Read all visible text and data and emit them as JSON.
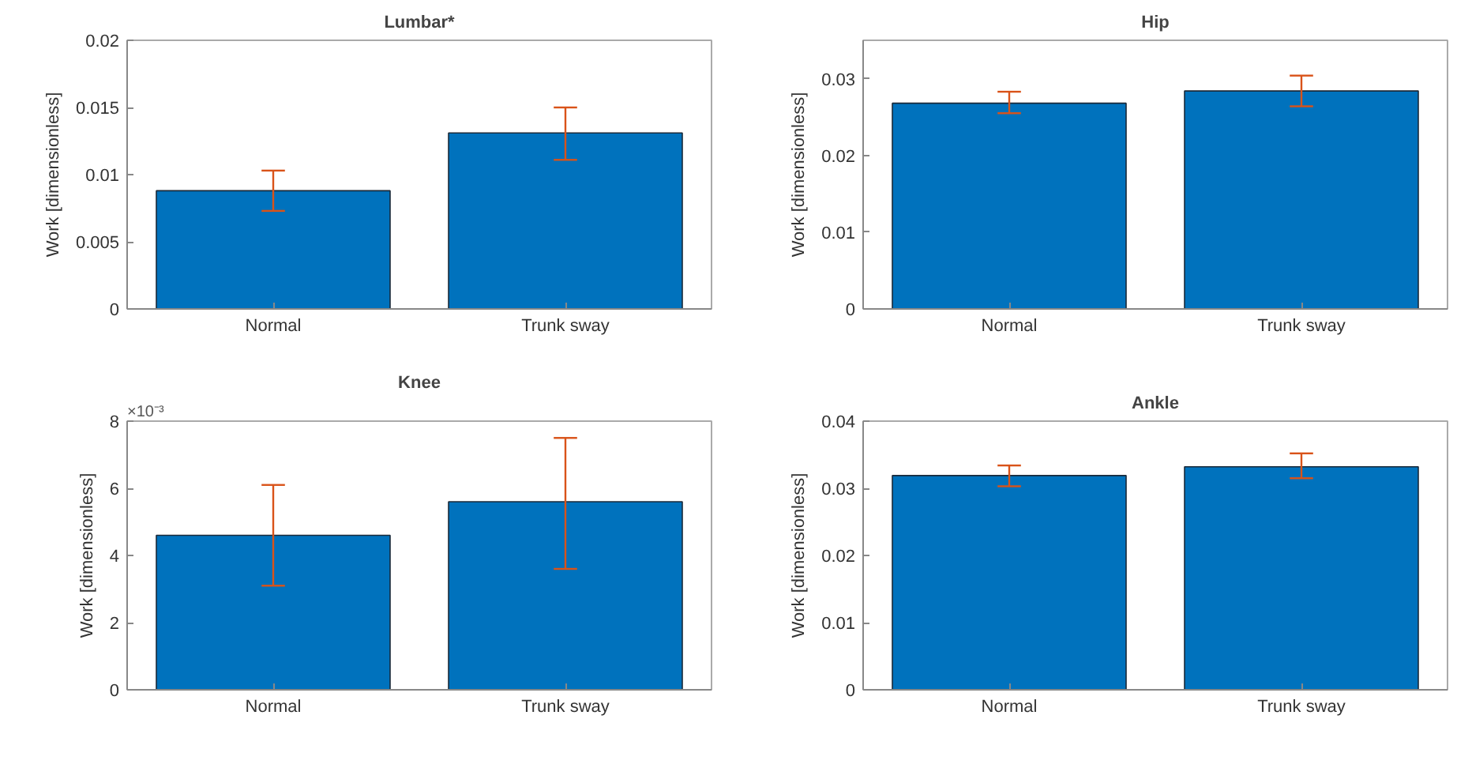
{
  "chart_data": [
    {
      "type": "bar",
      "title": "Lumbar*",
      "ylabel": "Work [dimensionless]",
      "categories": [
        "Normal",
        "Trunk sway"
      ],
      "values": [
        0.0088,
        0.0131
      ],
      "color": "#0072bd",
      "errors": [
        [
          0.0073,
          0.0103
        ],
        [
          0.0111,
          0.015
        ]
      ],
      "ylim": [
        0,
        0.02
      ],
      "yticks": [
        0,
        0.005,
        0.01,
        0.015,
        0.02
      ],
      "grid": false
    },
    {
      "type": "bar",
      "title": "Hip",
      "ylabel": "Work [dimensionless]",
      "categories": [
        "Normal",
        "Trunk sway"
      ],
      "values": [
        0.0268,
        0.0284
      ],
      "color": "#0072bd",
      "errors": [
        [
          0.0255,
          0.0283
        ],
        [
          0.0264,
          0.0304
        ]
      ],
      "ylim": [
        0,
        0.035
      ],
      "yticks": [
        0,
        0.01,
        0.02,
        0.03
      ],
      "grid": false
    },
    {
      "type": "bar",
      "title": "Knee",
      "ylabel": "Work [dimensionless]",
      "categories": [
        "Normal",
        "Trunk sway"
      ],
      "values": [
        4.6,
        5.6
      ],
      "color": "#0072bd",
      "errors": [
        [
          3.1,
          6.1
        ],
        [
          3.6,
          7.5
        ]
      ],
      "ylim": [
        0,
        8
      ],
      "yticks": [
        0,
        2,
        4,
        6,
        8
      ],
      "annotations": [
        "×10⁻³"
      ],
      "grid": false
    },
    {
      "type": "bar",
      "title": "Ankle",
      "ylabel": "Work [dimensionless]",
      "categories": [
        "Normal",
        "Trunk sway"
      ],
      "values": [
        0.0319,
        0.0332
      ],
      "color": "#0072bd",
      "errors": [
        [
          0.0303,
          0.0334
        ],
        [
          0.0315,
          0.0352
        ]
      ],
      "ylim": [
        0,
        0.04
      ],
      "yticks": [
        0,
        0.01,
        0.02,
        0.03,
        0.04
      ],
      "grid": false
    }
  ]
}
